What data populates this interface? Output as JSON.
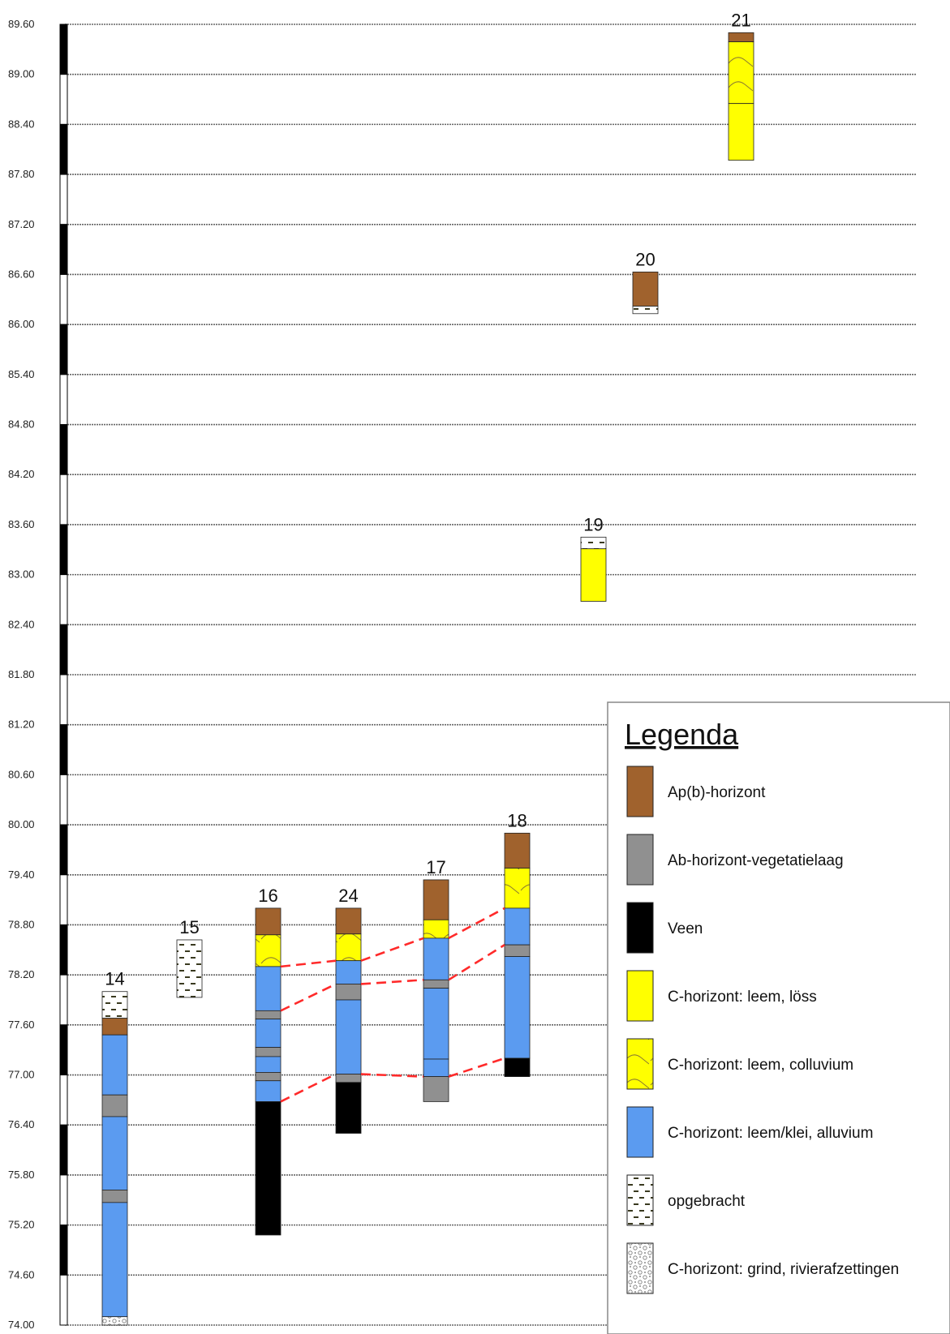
{
  "chart_data": {
    "type": "stratigraphic-columns",
    "y_axis": {
      "ticks": [
        "89.60",
        "89.00",
        "88.40",
        "87.80",
        "87.20",
        "86.60",
        "86.00",
        "85.40",
        "84.80",
        "84.20",
        "83.60",
        "83.00",
        "82.40",
        "81.80",
        "81.20",
        "80.60",
        "80.00",
        "79.40",
        "78.80",
        "78.20",
        "77.60",
        "77.00",
        "76.40",
        "75.80",
        "75.20",
        "74.60",
        "74.00"
      ],
      "range": [
        74.0,
        89.6
      ],
      "grid": true
    },
    "colors": {
      "Ap": "#A0622D",
      "Ab": "#909090",
      "veen": "#000000",
      "loss": "#FFFF00",
      "colluvium": "#FFFF00",
      "alluvium": "#5B9BF0",
      "opgebracht": "#FFFFFF",
      "grind": "#FFFFFF",
      "correlation": "#FF2A2A"
    },
    "borings": [
      {
        "id": "14",
        "layers": [
          {
            "type": "opgebracht",
            "top": 78.0,
            "bottom": 77.68
          },
          {
            "type": "Ap",
            "top": 77.68,
            "bottom": 77.48
          },
          {
            "type": "alluvium",
            "top": 77.48,
            "bottom": 76.76
          },
          {
            "type": "Ab",
            "top": 76.76,
            "bottom": 76.5
          },
          {
            "type": "alluvium",
            "top": 76.5,
            "bottom": 75.62
          },
          {
            "type": "Ab",
            "top": 75.62,
            "bottom": 75.47
          },
          {
            "type": "alluvium",
            "top": 75.47,
            "bottom": 74.1
          },
          {
            "type": "grind",
            "top": 74.1,
            "bottom": 74.0
          }
        ]
      },
      {
        "id": "15",
        "layers": [
          {
            "type": "opgebracht",
            "top": 78.62,
            "bottom": 77.93
          }
        ]
      },
      {
        "id": "16",
        "layers": [
          {
            "type": "Ap",
            "top": 79.0,
            "bottom": 78.68
          },
          {
            "type": "colluvium",
            "top": 78.68,
            "bottom": 78.3
          },
          {
            "type": "alluvium",
            "top": 78.3,
            "bottom": 77.77
          },
          {
            "type": "Ab",
            "top": 77.77,
            "bottom": 77.67
          },
          {
            "type": "alluvium",
            "top": 77.67,
            "bottom": 77.33
          },
          {
            "type": "Ab",
            "top": 77.33,
            "bottom": 77.22
          },
          {
            "type": "alluvium",
            "top": 77.22,
            "bottom": 77.03
          },
          {
            "type": "Ab",
            "top": 77.03,
            "bottom": 76.93
          },
          {
            "type": "alluvium",
            "top": 76.93,
            "bottom": 76.68
          },
          {
            "type": "veen",
            "top": 76.68,
            "bottom": 75.08
          }
        ]
      },
      {
        "id": "24",
        "layers": [
          {
            "type": "Ap",
            "top": 79.0,
            "bottom": 78.69
          },
          {
            "type": "colluvium",
            "top": 78.69,
            "bottom": 78.37
          },
          {
            "type": "alluvium",
            "top": 78.37,
            "bottom": 78.09
          },
          {
            "type": "Ab",
            "top": 78.09,
            "bottom": 77.9
          },
          {
            "type": "alluvium",
            "top": 77.9,
            "bottom": 77.01
          },
          {
            "type": "Ab",
            "top": 77.01,
            "bottom": 76.91
          },
          {
            "type": "veen",
            "top": 76.91,
            "bottom": 76.3
          }
        ]
      },
      {
        "id": "17",
        "layers": [
          {
            "type": "Ap",
            "top": 79.34,
            "bottom": 78.86
          },
          {
            "type": "colluvium",
            "top": 78.86,
            "bottom": 78.64
          },
          {
            "type": "alluvium",
            "top": 78.64,
            "bottom": 78.14
          },
          {
            "type": "Ab",
            "top": 78.14,
            "bottom": 78.04
          },
          {
            "type": "alluvium",
            "top": 78.04,
            "bottom": 77.19
          },
          {
            "type": "alluvium",
            "top": 77.19,
            "bottom": 76.98
          },
          {
            "type": "Ab",
            "top": 76.98,
            "bottom": 76.68
          }
        ]
      },
      {
        "id": "18",
        "layers": [
          {
            "type": "Ap",
            "top": 79.9,
            "bottom": 79.48
          },
          {
            "type": "colluvium",
            "top": 79.48,
            "bottom": 79.0
          },
          {
            "type": "alluvium",
            "top": 79.0,
            "bottom": 78.56
          },
          {
            "type": "Ab",
            "top": 78.56,
            "bottom": 78.42
          },
          {
            "type": "alluvium",
            "top": 78.42,
            "bottom": 77.2
          },
          {
            "type": "veen",
            "top": 77.2,
            "bottom": 76.98
          }
        ]
      },
      {
        "id": "19",
        "layers": [
          {
            "type": "opgebracht",
            "top": 83.45,
            "bottom": 83.31
          },
          {
            "type": "loss",
            "top": 83.31,
            "bottom": 82.68
          }
        ]
      },
      {
        "id": "20",
        "layers": [
          {
            "type": "Ap",
            "top": 86.63,
            "bottom": 86.22
          },
          {
            "type": "opgebracht",
            "top": 86.22,
            "bottom": 86.13
          }
        ]
      },
      {
        "id": "21",
        "layers": [
          {
            "type": "Ap",
            "top": 89.5,
            "bottom": 89.39
          },
          {
            "type": "colluvium",
            "top": 89.39,
            "bottom": 88.65
          },
          {
            "type": "loss",
            "top": 88.65,
            "bottom": 87.97
          }
        ]
      }
    ],
    "correlations": [
      {
        "points": [
          [
            "16",
            78.3
          ],
          [
            "24",
            78.37
          ],
          [
            "17",
            78.64
          ],
          [
            "18",
            79.0
          ]
        ]
      },
      {
        "points": [
          [
            "16",
            77.77
          ],
          [
            "24",
            78.09
          ],
          [
            "17",
            78.14
          ],
          [
            "18",
            78.56
          ]
        ]
      },
      {
        "points": [
          [
            "16",
            76.68
          ],
          [
            "24",
            77.01
          ],
          [
            "17",
            76.98
          ],
          [
            "18",
            77.2
          ]
        ]
      }
    ]
  },
  "legend": {
    "title": "Legenda",
    "items": [
      {
        "key": "Ap",
        "label": "Ap(b)-horizont"
      },
      {
        "key": "Ab",
        "label": "Ab-horizont-vegetatielaag"
      },
      {
        "key": "veen",
        "label": "Veen"
      },
      {
        "key": "loss",
        "label": "C-horizont: leem, löss"
      },
      {
        "key": "colluvium",
        "label": "C-horizont: leem, colluvium"
      },
      {
        "key": "alluvium",
        "label": "C-horizont: leem/klei, alluvium"
      },
      {
        "key": "opgebracht",
        "label": "opgebracht"
      },
      {
        "key": "grind",
        "label": "C-horizont: grind, rivierafzettingen"
      }
    ]
  }
}
